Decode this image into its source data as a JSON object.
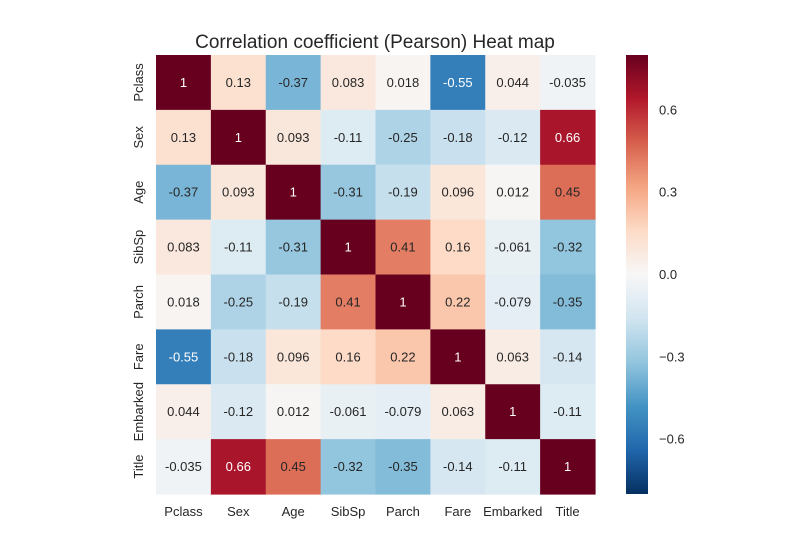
{
  "chart_data": {
    "type": "heatmap",
    "title": "Correlation coefficient (Pearson) Heat map",
    "xlabels": [
      "Pclass",
      "Sex",
      "Age",
      "SibSp",
      "Parch",
      "Fare",
      "Embarked",
      "Title"
    ],
    "ylabels": [
      "Pclass",
      "Sex",
      "Age",
      "SibSp",
      "Parch",
      "Fare",
      "Embarked",
      "Title"
    ],
    "values": [
      [
        1,
        0.13,
        -0.37,
        0.083,
        0.018,
        -0.55,
        0.044,
        -0.035
      ],
      [
        0.13,
        1,
        0.093,
        -0.11,
        -0.25,
        -0.18,
        -0.12,
        0.66
      ],
      [
        -0.37,
        0.093,
        1,
        -0.31,
        -0.19,
        0.096,
        0.012,
        0.45
      ],
      [
        0.083,
        -0.11,
        -0.31,
        1,
        0.41,
        0.16,
        -0.061,
        -0.32
      ],
      [
        0.018,
        -0.25,
        -0.19,
        0.41,
        1,
        0.22,
        -0.079,
        -0.35
      ],
      [
        -0.55,
        -0.18,
        0.096,
        0.16,
        0.22,
        1,
        0.063,
        -0.14
      ],
      [
        0.044,
        -0.12,
        0.012,
        -0.061,
        -0.079,
        0.063,
        1,
        -0.11
      ],
      [
        -0.035,
        0.66,
        0.45,
        -0.32,
        -0.35,
        -0.14,
        -0.11,
        1
      ]
    ],
    "labels": [
      [
        "1",
        "0.13",
        "-0.37",
        "0.083",
        "0.018",
        "-0.55",
        "0.044",
        "-0.035"
      ],
      [
        "0.13",
        "1",
        "0.093",
        "-0.11",
        "-0.25",
        "-0.18",
        "-0.12",
        "0.66"
      ],
      [
        "-0.37",
        "0.093",
        "1",
        "-0.31",
        "-0.19",
        "0.096",
        "0.012",
        "0.45"
      ],
      [
        "0.083",
        "-0.11",
        "-0.31",
        "1",
        "0.41",
        "0.16",
        "-0.061",
        "-0.32"
      ],
      [
        "0.018",
        "-0.25",
        "-0.19",
        "0.41",
        "1",
        "0.22",
        "-0.079",
        "-0.35"
      ],
      [
        "-0.55",
        "-0.18",
        "0.096",
        "0.16",
        "0.22",
        "1",
        "0.063",
        "-0.14"
      ],
      [
        "0.044",
        "-0.12",
        "0.012",
        "-0.061",
        "-0.079",
        "0.063",
        "1",
        "-0.11"
      ],
      [
        "-0.035",
        "0.66",
        "0.45",
        "-0.32",
        "-0.35",
        "-0.14",
        "-0.11",
        "1"
      ]
    ],
    "colormap": "RdBu_r",
    "vmin": -0.8,
    "vmax": 0.8,
    "colorbar_ticks": [
      -0.6,
      -0.3,
      0.0,
      0.3,
      0.6
    ],
    "colorbar_tick_labels": [
      "−0.6",
      "−0.3",
      "0.0",
      "0.3",
      "0.6"
    ],
    "colorbar": "right",
    "grid": false
  }
}
